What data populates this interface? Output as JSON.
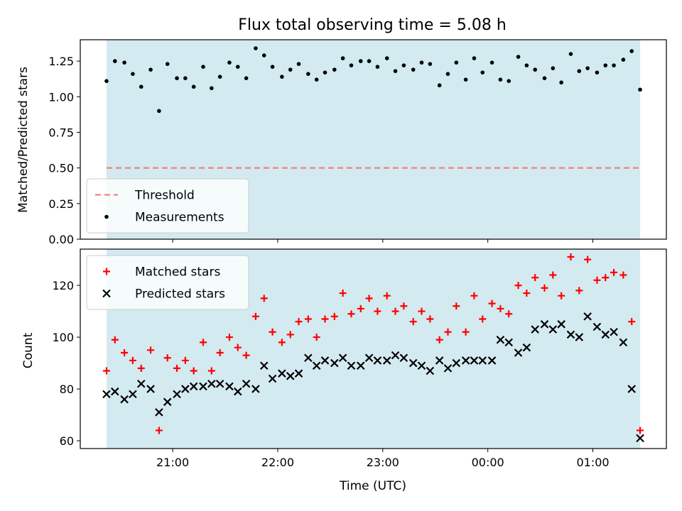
{
  "chart_data": [
    {
      "type": "scatter",
      "title": "Flux total observing time = 5.08 h",
      "xlabel": "",
      "ylabel": "Matched/Predicted stars",
      "ylim": [
        0.0,
        1.4
      ],
      "yticks": [
        0.0,
        0.25,
        0.5,
        0.75,
        1.0,
        1.25
      ],
      "ytick_labels": [
        "0.00",
        "0.25",
        "0.50",
        "0.75",
        "1.00",
        "1.25"
      ],
      "xlim": [
        20.12,
        25.7
      ],
      "shaded_span": [
        20.37,
        25.45
      ],
      "shade_color": "#d3eaf0",
      "legend_location": "lower left",
      "threshold": {
        "name": "Threshold",
        "value": 0.5,
        "color": "#f08080",
        "style": "dashed"
      },
      "series": [
        {
          "name": "Measurements",
          "marker": "dot",
          "color": "#000000",
          "x": [
            20.37,
            20.45,
            20.54,
            20.62,
            20.7,
            20.79,
            20.87,
            20.95,
            21.04,
            21.12,
            21.2,
            21.29,
            21.37,
            21.45,
            21.54,
            21.62,
            21.7,
            21.79,
            21.87,
            21.95,
            22.04,
            22.12,
            22.2,
            22.29,
            22.37,
            22.45,
            22.54,
            22.62,
            22.7,
            22.79,
            22.87,
            22.95,
            23.04,
            23.12,
            23.2,
            23.29,
            23.37,
            23.45,
            23.54,
            23.62,
            23.7,
            23.79,
            23.87,
            23.95,
            24.04,
            24.12,
            24.2,
            24.29,
            24.37,
            24.45,
            24.54,
            24.62,
            24.7,
            24.79,
            24.87,
            24.95,
            25.04,
            25.12,
            25.2,
            25.29,
            25.37,
            25.45
          ],
          "y": [
            1.11,
            1.25,
            1.24,
            1.16,
            1.07,
            1.19,
            0.9,
            1.23,
            1.13,
            1.13,
            1.07,
            1.21,
            1.06,
            1.14,
            1.24,
            1.21,
            1.13,
            1.34,
            1.29,
            1.21,
            1.14,
            1.19,
            1.23,
            1.16,
            1.12,
            1.17,
            1.19,
            1.27,
            1.22,
            1.25,
            1.25,
            1.21,
            1.27,
            1.18,
            1.22,
            1.19,
            1.24,
            1.23,
            1.08,
            1.16,
            1.24,
            1.12,
            1.27,
            1.17,
            1.24,
            1.12,
            1.11,
            1.28,
            1.22,
            1.19,
            1.13,
            1.2,
            1.1,
            1.3,
            1.18,
            1.2,
            1.17,
            1.22,
            1.22,
            1.26,
            1.32,
            1.05
          ]
        }
      ]
    },
    {
      "type": "scatter",
      "title": "",
      "xlabel": "Time (UTC)",
      "ylabel": "Count",
      "ylim": [
        57,
        134
      ],
      "yticks": [
        60,
        80,
        100,
        120
      ],
      "ytick_labels": [
        "60",
        "80",
        "100",
        "120"
      ],
      "xlim": [
        20.12,
        25.7
      ],
      "xticks": [
        21,
        22,
        23,
        24,
        25
      ],
      "xtick_labels": [
        "21:00",
        "22:00",
        "23:00",
        "00:00",
        "01:00"
      ],
      "shaded_span": [
        20.37,
        25.45
      ],
      "shade_color": "#d3eaf0",
      "legend_location": "upper left",
      "series": [
        {
          "name": "Matched stars",
          "marker": "plus",
          "color": "#ff0000",
          "x": [
            20.37,
            20.45,
            20.54,
            20.62,
            20.7,
            20.79,
            20.87,
            20.95,
            21.04,
            21.12,
            21.2,
            21.29,
            21.37,
            21.45,
            21.54,
            21.62,
            21.7,
            21.79,
            21.87,
            21.95,
            22.04,
            22.12,
            22.2,
            22.29,
            22.37,
            22.45,
            22.54,
            22.62,
            22.7,
            22.79,
            22.87,
            22.95,
            23.04,
            23.12,
            23.2,
            23.29,
            23.37,
            23.45,
            23.54,
            23.62,
            23.7,
            23.79,
            23.87,
            23.95,
            24.04,
            24.12,
            24.2,
            24.29,
            24.37,
            24.45,
            24.54,
            24.62,
            24.7,
            24.79,
            24.87,
            24.95,
            25.04,
            25.12,
            25.2,
            25.29,
            25.37,
            25.45
          ],
          "y": [
            87,
            99,
            94,
            91,
            88,
            95,
            64,
            92,
            88,
            91,
            87,
            98,
            87,
            94,
            100,
            96,
            93,
            108,
            115,
            102,
            98,
            101,
            106,
            107,
            100,
            107,
            108,
            117,
            109,
            111,
            115,
            110,
            116,
            110,
            112,
            106,
            110,
            107,
            99,
            102,
            112,
            102,
            116,
            107,
            113,
            111,
            109,
            120,
            117,
            123,
            119,
            124,
            116,
            131,
            118,
            130,
            122,
            123,
            125,
            124,
            106,
            64
          ]
        },
        {
          "name": "Predicted stars",
          "marker": "x",
          "color": "#000000",
          "x": [
            20.37,
            20.45,
            20.54,
            20.62,
            20.7,
            20.79,
            20.87,
            20.95,
            21.04,
            21.12,
            21.2,
            21.29,
            21.37,
            21.45,
            21.54,
            21.62,
            21.7,
            21.79,
            21.87,
            21.95,
            22.04,
            22.12,
            22.2,
            22.29,
            22.37,
            22.45,
            22.54,
            22.62,
            22.7,
            22.79,
            22.87,
            22.95,
            23.04,
            23.12,
            23.2,
            23.29,
            23.37,
            23.45,
            23.54,
            23.62,
            23.7,
            23.79,
            23.87,
            23.95,
            24.04,
            24.12,
            24.2,
            24.29,
            24.37,
            24.45,
            24.54,
            24.62,
            24.7,
            24.79,
            24.87,
            24.95,
            25.04,
            25.12,
            25.2,
            25.29,
            25.37,
            25.45
          ],
          "y": [
            78,
            79,
            76,
            78,
            82,
            80,
            71,
            75,
            78,
            80,
            81,
            81,
            82,
            82,
            81,
            79,
            82,
            80,
            89,
            84,
            86,
            85,
            86,
            92,
            89,
            91,
            90,
            92,
            89,
            89,
            92,
            91,
            91,
            93,
            92,
            90,
            89,
            87,
            91,
            88,
            90,
            91,
            91,
            91,
            91,
            99,
            98,
            94,
            96,
            103,
            105,
            103,
            105,
            101,
            100,
            108,
            104,
            101,
            102,
            98,
            80,
            61
          ]
        }
      ]
    }
  ]
}
